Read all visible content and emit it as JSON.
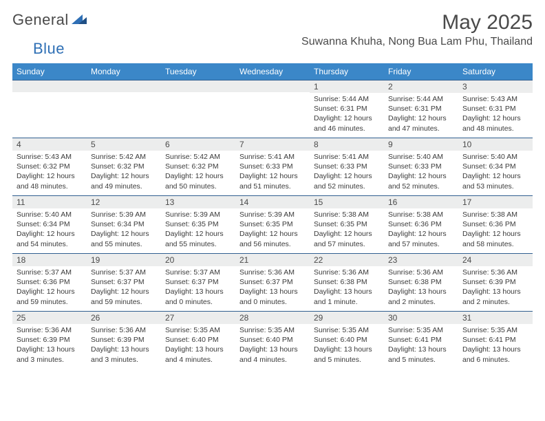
{
  "logo": {
    "word1": "General",
    "word2": "Blue"
  },
  "title": "May 2025",
  "location": "Suwanna Khuha, Nong Bua Lam Phu, Thailand",
  "colors": {
    "header_bg": "#3b87c8",
    "header_text": "#ffffff",
    "daynum_bg": "#eceded",
    "row_border": "#2f5e8f",
    "body_text": "#3a3a3a",
    "title_text": "#4a4a4a",
    "logo_blue": "#2e6fb5"
  },
  "day_headers": [
    "Sunday",
    "Monday",
    "Tuesday",
    "Wednesday",
    "Thursday",
    "Friday",
    "Saturday"
  ],
  "weeks": [
    [
      {
        "n": "",
        "sr": "",
        "ss": "",
        "dl": ""
      },
      {
        "n": "",
        "sr": "",
        "ss": "",
        "dl": ""
      },
      {
        "n": "",
        "sr": "",
        "ss": "",
        "dl": ""
      },
      {
        "n": "",
        "sr": "",
        "ss": "",
        "dl": ""
      },
      {
        "n": "1",
        "sr": "5:44 AM",
        "ss": "6:31 PM",
        "dl": "12 hours and 46 minutes."
      },
      {
        "n": "2",
        "sr": "5:44 AM",
        "ss": "6:31 PM",
        "dl": "12 hours and 47 minutes."
      },
      {
        "n": "3",
        "sr": "5:43 AM",
        "ss": "6:31 PM",
        "dl": "12 hours and 48 minutes."
      }
    ],
    [
      {
        "n": "4",
        "sr": "5:43 AM",
        "ss": "6:32 PM",
        "dl": "12 hours and 48 minutes."
      },
      {
        "n": "5",
        "sr": "5:42 AM",
        "ss": "6:32 PM",
        "dl": "12 hours and 49 minutes."
      },
      {
        "n": "6",
        "sr": "5:42 AM",
        "ss": "6:32 PM",
        "dl": "12 hours and 50 minutes."
      },
      {
        "n": "7",
        "sr": "5:41 AM",
        "ss": "6:33 PM",
        "dl": "12 hours and 51 minutes."
      },
      {
        "n": "8",
        "sr": "5:41 AM",
        "ss": "6:33 PM",
        "dl": "12 hours and 52 minutes."
      },
      {
        "n": "9",
        "sr": "5:40 AM",
        "ss": "6:33 PM",
        "dl": "12 hours and 52 minutes."
      },
      {
        "n": "10",
        "sr": "5:40 AM",
        "ss": "6:34 PM",
        "dl": "12 hours and 53 minutes."
      }
    ],
    [
      {
        "n": "11",
        "sr": "5:40 AM",
        "ss": "6:34 PM",
        "dl": "12 hours and 54 minutes."
      },
      {
        "n": "12",
        "sr": "5:39 AM",
        "ss": "6:34 PM",
        "dl": "12 hours and 55 minutes."
      },
      {
        "n": "13",
        "sr": "5:39 AM",
        "ss": "6:35 PM",
        "dl": "12 hours and 55 minutes."
      },
      {
        "n": "14",
        "sr": "5:39 AM",
        "ss": "6:35 PM",
        "dl": "12 hours and 56 minutes."
      },
      {
        "n": "15",
        "sr": "5:38 AM",
        "ss": "6:35 PM",
        "dl": "12 hours and 57 minutes."
      },
      {
        "n": "16",
        "sr": "5:38 AM",
        "ss": "6:36 PM",
        "dl": "12 hours and 57 minutes."
      },
      {
        "n": "17",
        "sr": "5:38 AM",
        "ss": "6:36 PM",
        "dl": "12 hours and 58 minutes."
      }
    ],
    [
      {
        "n": "18",
        "sr": "5:37 AM",
        "ss": "6:36 PM",
        "dl": "12 hours and 59 minutes."
      },
      {
        "n": "19",
        "sr": "5:37 AM",
        "ss": "6:37 PM",
        "dl": "12 hours and 59 minutes."
      },
      {
        "n": "20",
        "sr": "5:37 AM",
        "ss": "6:37 PM",
        "dl": "13 hours and 0 minutes."
      },
      {
        "n": "21",
        "sr": "5:36 AM",
        "ss": "6:37 PM",
        "dl": "13 hours and 0 minutes."
      },
      {
        "n": "22",
        "sr": "5:36 AM",
        "ss": "6:38 PM",
        "dl": "13 hours and 1 minute."
      },
      {
        "n": "23",
        "sr": "5:36 AM",
        "ss": "6:38 PM",
        "dl": "13 hours and 2 minutes."
      },
      {
        "n": "24",
        "sr": "5:36 AM",
        "ss": "6:39 PM",
        "dl": "13 hours and 2 minutes."
      }
    ],
    [
      {
        "n": "25",
        "sr": "5:36 AM",
        "ss": "6:39 PM",
        "dl": "13 hours and 3 minutes."
      },
      {
        "n": "26",
        "sr": "5:36 AM",
        "ss": "6:39 PM",
        "dl": "13 hours and 3 minutes."
      },
      {
        "n": "27",
        "sr": "5:35 AM",
        "ss": "6:40 PM",
        "dl": "13 hours and 4 minutes."
      },
      {
        "n": "28",
        "sr": "5:35 AM",
        "ss": "6:40 PM",
        "dl": "13 hours and 4 minutes."
      },
      {
        "n": "29",
        "sr": "5:35 AM",
        "ss": "6:40 PM",
        "dl": "13 hours and 5 minutes."
      },
      {
        "n": "30",
        "sr": "5:35 AM",
        "ss": "6:41 PM",
        "dl": "13 hours and 5 minutes."
      },
      {
        "n": "31",
        "sr": "5:35 AM",
        "ss": "6:41 PM",
        "dl": "13 hours and 6 minutes."
      }
    ]
  ],
  "labels": {
    "sunrise": "Sunrise:",
    "sunset": "Sunset:",
    "daylight": "Daylight:"
  }
}
